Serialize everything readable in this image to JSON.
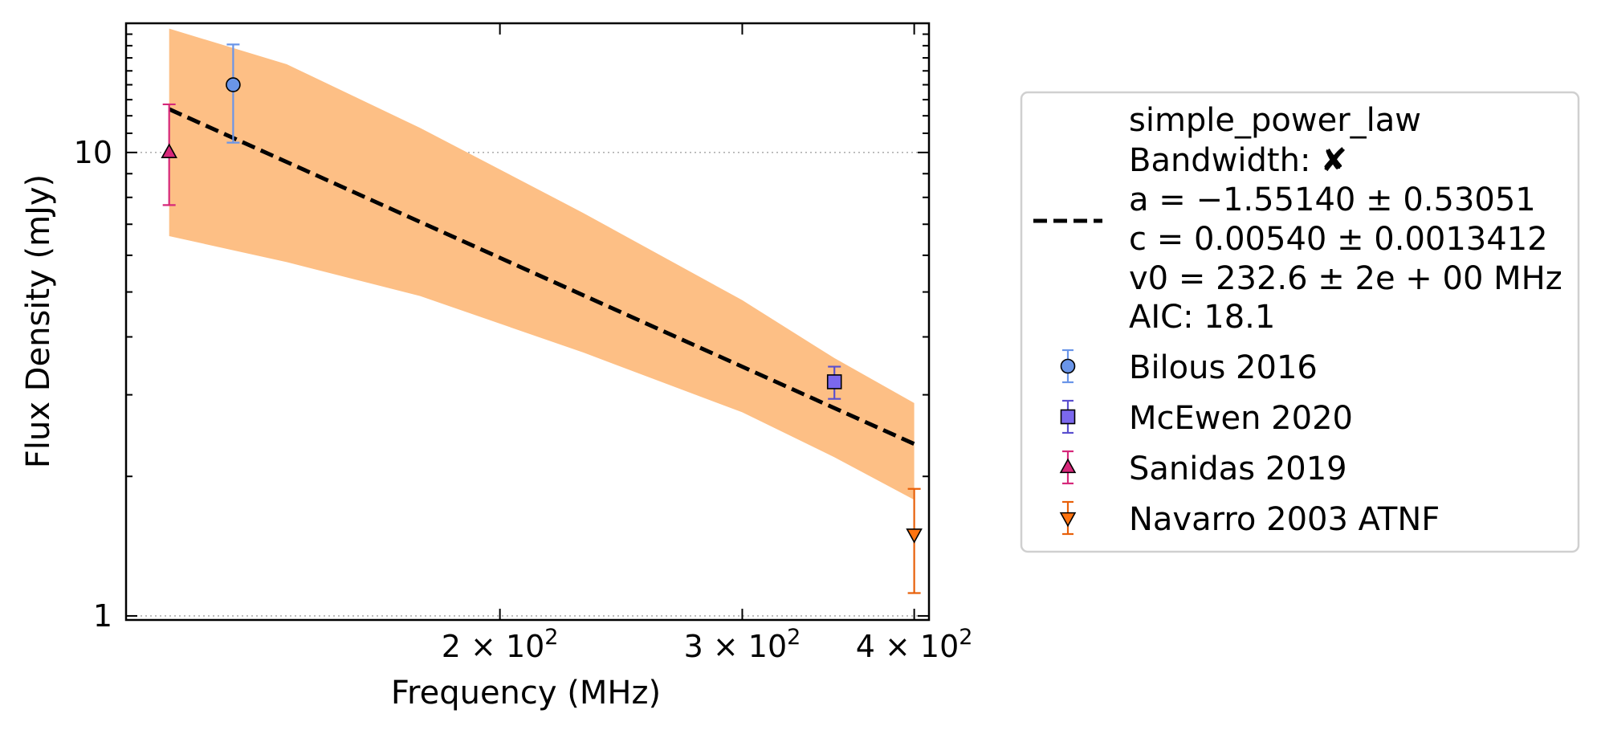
{
  "chart_data": {
    "type": "scatter",
    "xlabel": "Frequency (MHz)",
    "ylabel": "Flux Density (mJy)",
    "x_scale": "log",
    "y_scale": "log",
    "xlim": [
      107,
      410
    ],
    "ylim": [
      0.98,
      19
    ],
    "x_ticks": [
      {
        "value": 200,
        "label_base": "2 × 10",
        "label_exp": "2"
      },
      {
        "value": 300,
        "label_base": "3 × 10",
        "label_exp": "2"
      },
      {
        "value": 400,
        "label_base": "4 × 10",
        "label_exp": "2"
      }
    ],
    "y_ticks": [
      {
        "value": 1,
        "label": "1"
      },
      {
        "value": 10,
        "label": "10"
      }
    ],
    "grid": "horizontal dotted at decades",
    "fit": {
      "name": "simple_power_law",
      "bandwidth_label": "Bandwidth:",
      "bandwidth_mark": "✘",
      "param_a": "a = −1.55140 ± 0.53051",
      "param_c": "c = 0.00540 ± 0.0013412",
      "param_v0": "v0 = 232.6 ± 2e + 00 MHz",
      "aic": "AIC: 18.1",
      "line": {
        "x": [
          115,
          400
        ],
        "y": [
          12.4,
          2.35
        ]
      },
      "band": {
        "x": [
          115,
          140,
          175,
          230,
          300,
          350,
          400
        ],
        "upper": [
          18.5,
          15.5,
          11.3,
          7.4,
          4.8,
          3.6,
          2.88
        ],
        "lower": [
          6.6,
          5.8,
          4.9,
          3.7,
          2.75,
          2.2,
          1.78
        ]
      },
      "line_color": "#000000",
      "band_color": "#fdbf85"
    },
    "series": [
      {
        "name": "Bilous 2016",
        "marker": "circle",
        "color": "#6a95e8",
        "edge": "#6a95e8",
        "points": [
          {
            "x": 128,
            "y": 14.0,
            "ylo": 10.5,
            "yhi": 17.1
          }
        ]
      },
      {
        "name": "McEwen 2020",
        "marker": "square",
        "color": "#7b68ee",
        "edge": "#5a4fcf",
        "points": [
          {
            "x": 350,
            "y": 3.2,
            "ylo": 2.94,
            "yhi": 3.45
          }
        ]
      },
      {
        "name": "Sanidas 2019",
        "marker": "triangle-up",
        "color": "#d6287a",
        "edge": "#d6287a",
        "points": [
          {
            "x": 115,
            "y": 10.0,
            "ylo": 7.7,
            "yhi": 12.7
          }
        ]
      },
      {
        "name": "Navarro 2003 ATNF",
        "marker": "triangle-down",
        "color": "#ff7410",
        "edge": "#e8600a",
        "points": [
          {
            "x": 400,
            "y": 1.5,
            "ylo": 1.12,
            "yhi": 1.88
          }
        ]
      }
    ],
    "legend_position": "right, outside plot"
  }
}
